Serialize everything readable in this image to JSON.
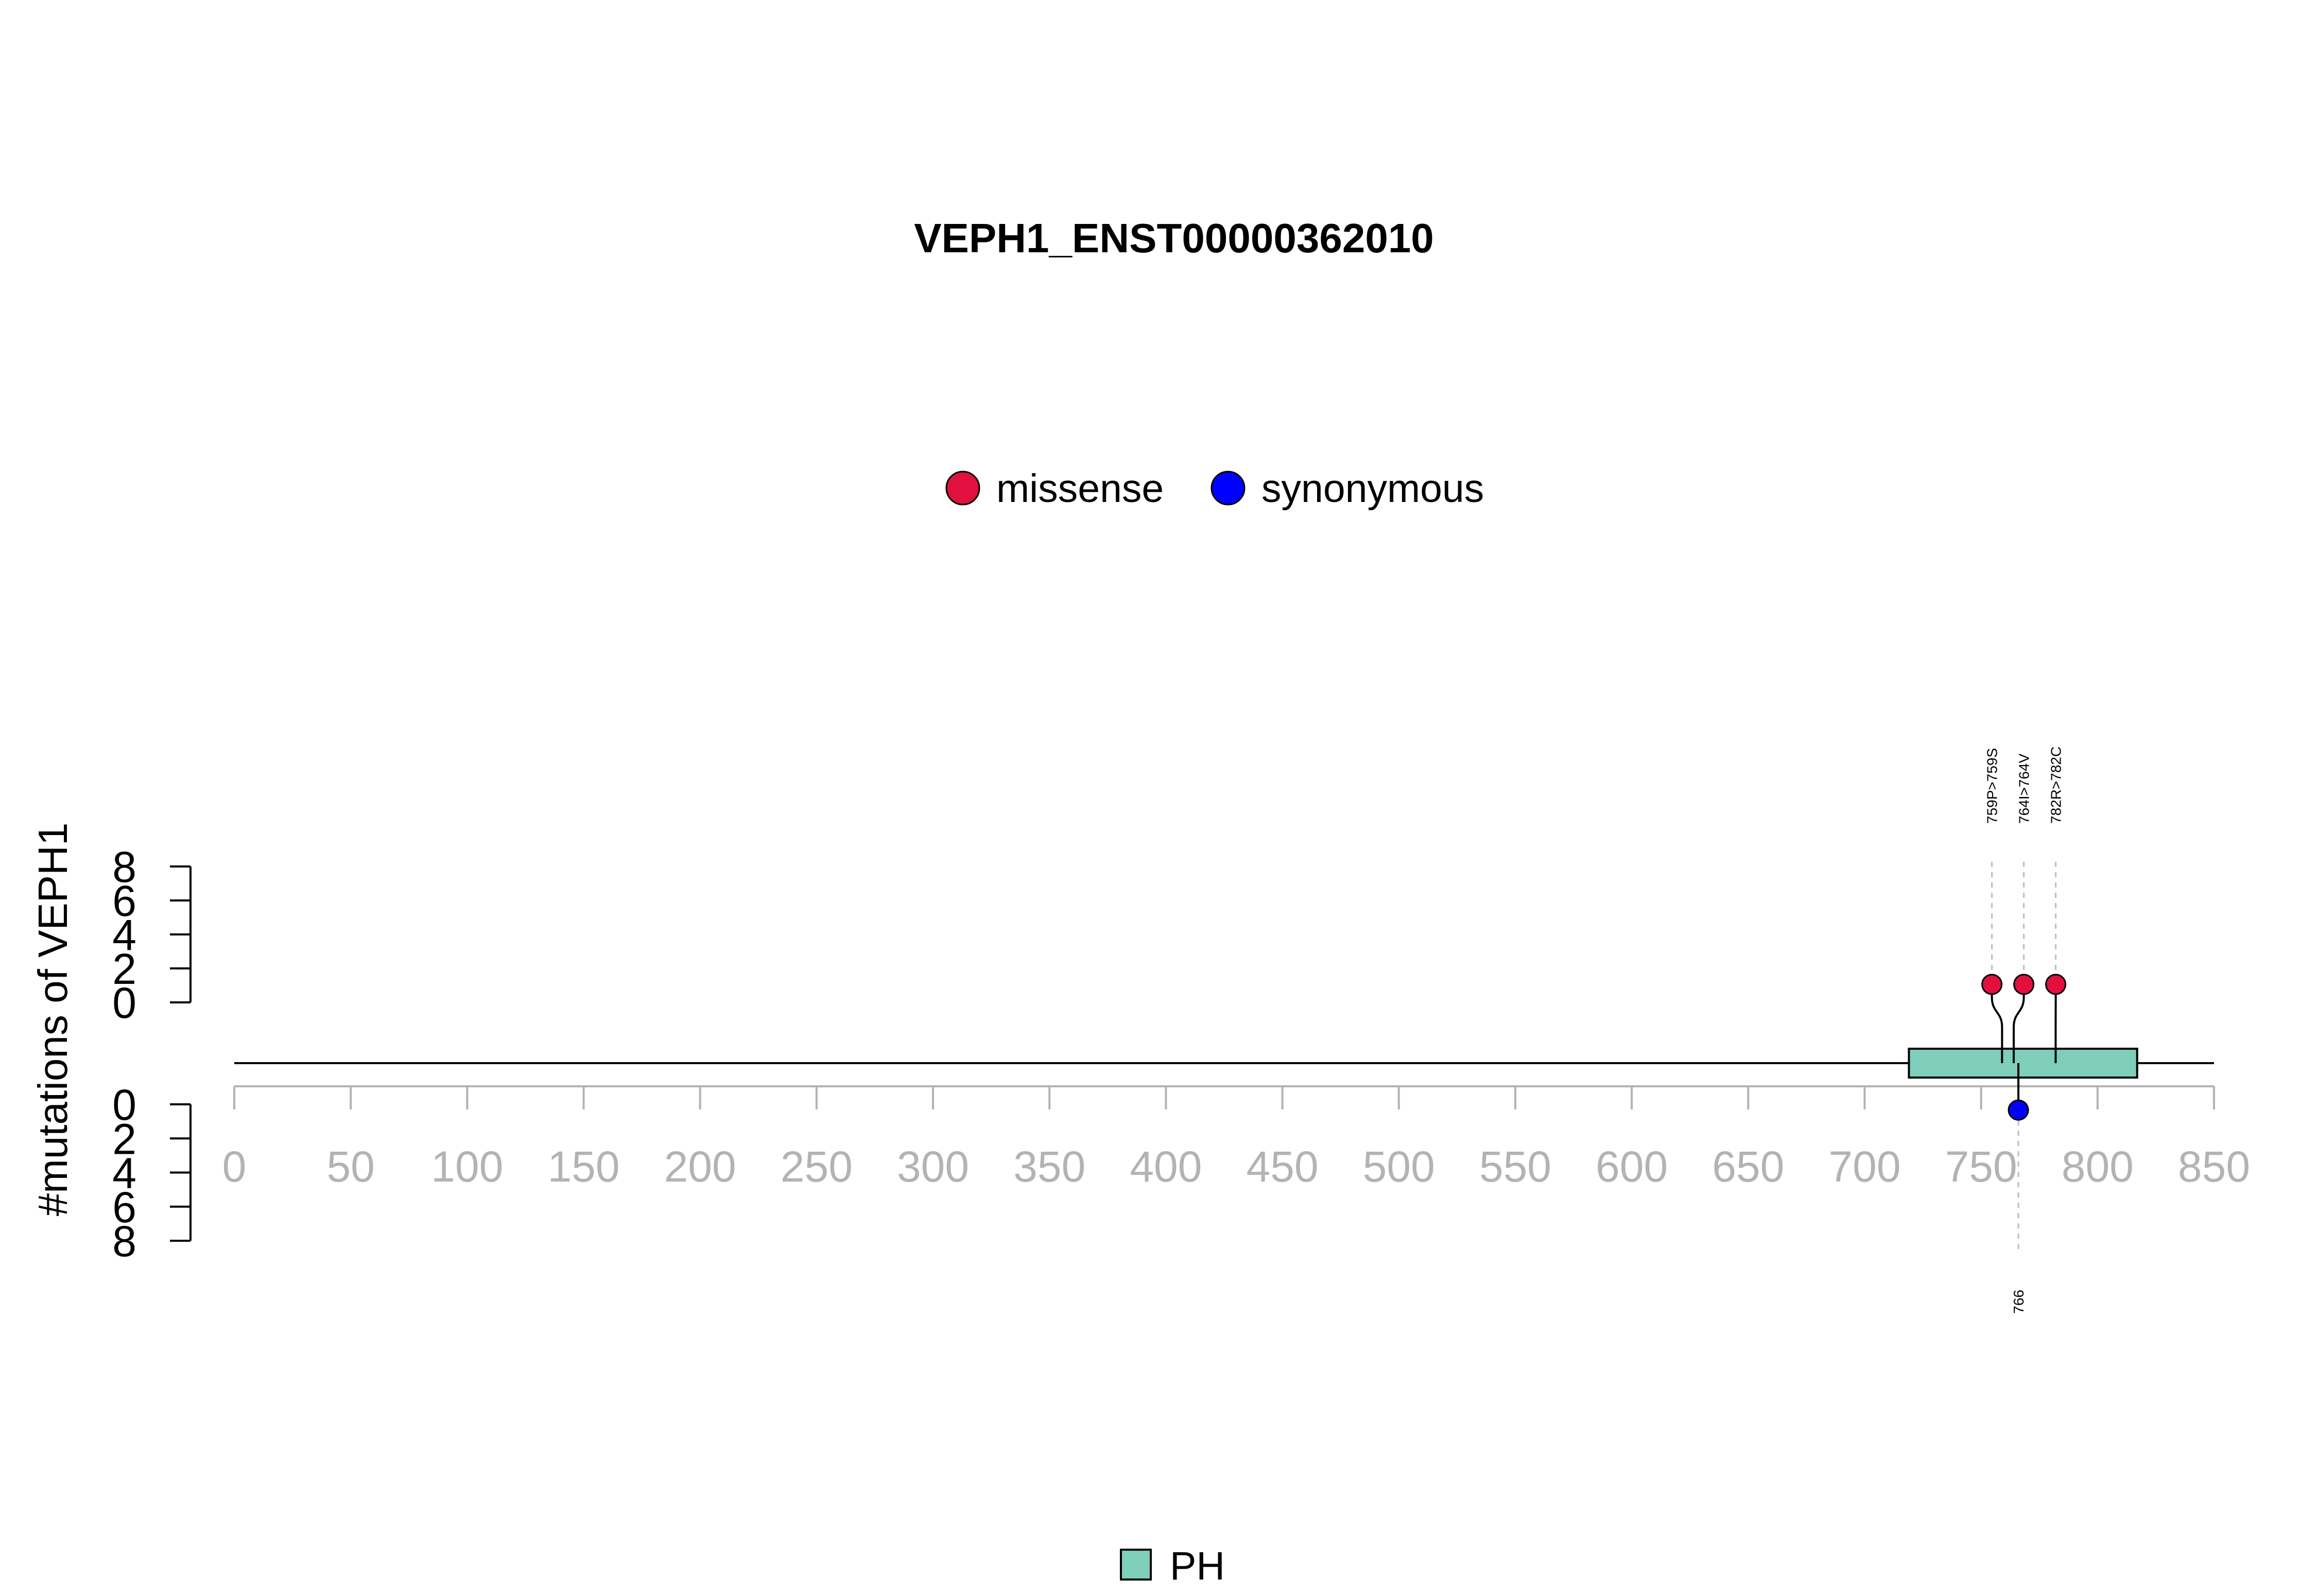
{
  "chart_data": {
    "type": "lollipop",
    "title": "VEPH1_ENST00000362010",
    "ylabel": "#mutations of VEPH1",
    "protein_length": 850,
    "x_ticks": [
      0,
      50,
      100,
      150,
      200,
      250,
      300,
      350,
      400,
      450,
      500,
      550,
      600,
      650,
      700,
      750,
      800,
      850
    ],
    "y_ticks_upper": [
      0,
      2,
      4,
      6,
      8
    ],
    "y_ticks_lower": [
      0,
      2,
      4,
      6,
      8
    ],
    "xlim": [
      0,
      850
    ],
    "ylim": [
      0,
      8
    ],
    "legend": [
      {
        "name": "missense",
        "color": "#e0103f"
      },
      {
        "name": "synonymous",
        "color": "#0000ff"
      }
    ],
    "domains": [
      {
        "name": "PH",
        "start": 719,
        "end": 817,
        "color": "#7fcdbb"
      }
    ],
    "mutations_upper": [
      {
        "position": 759,
        "label": "759P>759S",
        "count": 1,
        "type": "missense"
      },
      {
        "position": 764,
        "label": "764I>764V",
        "count": 1,
        "type": "missense"
      },
      {
        "position": 782,
        "label": "782R>782C",
        "count": 1,
        "type": "missense"
      }
    ],
    "mutations_lower": [
      {
        "position": 766,
        "label": "766",
        "count": 1,
        "type": "synonymous"
      }
    ]
  }
}
